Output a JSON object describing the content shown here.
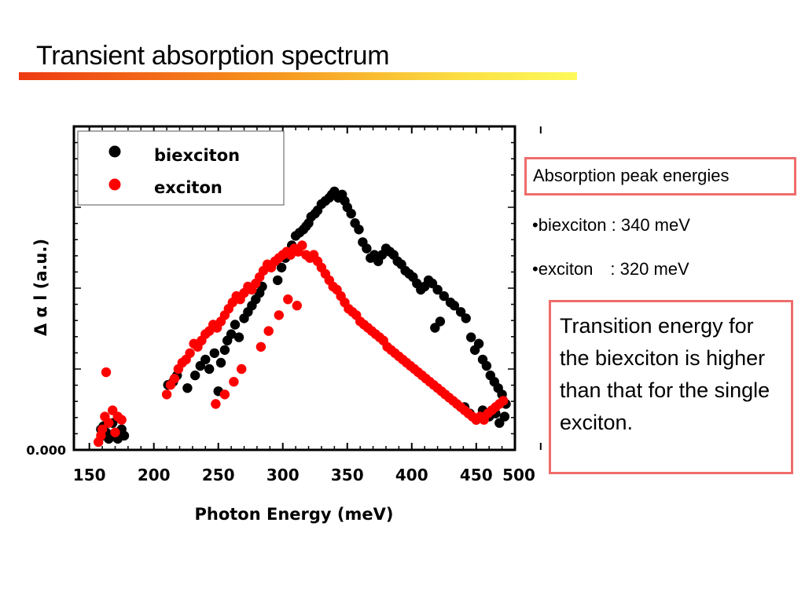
{
  "slide": {
    "title": "Transient absorption spectrum",
    "title_bar_colors": [
      "#ee3a12",
      "#f6941e",
      "#fbe043",
      "#fdfa5a"
    ]
  },
  "peaks_box": {
    "heading": "Absorption peak energies",
    "items": [
      "•biexciton : 340 meV",
      "•exciton　: 320 meV"
    ]
  },
  "note_box": {
    "text": "Transition energy for the biexciton  is higher than that for the single exciton."
  },
  "colors": {
    "box_border": "#ef6c6c",
    "biexciton": "#000000",
    "exciton": "#ff0000"
  },
  "chart_data": {
    "type": "scatter",
    "xlabel": "Photon Energy (meV)",
    "ylabel": "Δ α l (a.u.)",
    "xlim": [
      138,
      480
    ],
    "xticks": [
      150,
      200,
      250,
      300,
      350,
      400,
      450,
      500
    ],
    "ylim": [
      0,
      100
    ],
    "yticks_labeled": [
      {
        "value": 0,
        "label": "0.000"
      }
    ],
    "grid": false,
    "legend_position": "top-left",
    "series": [
      {
        "name": "biexciton",
        "color": "#000000",
        "points": [
          [
            159,
            5
          ],
          [
            160,
            3
          ],
          [
            161,
            6
          ],
          [
            163,
            4
          ],
          [
            165,
            2
          ],
          [
            168,
            7
          ],
          [
            170,
            4
          ],
          [
            172,
            2
          ],
          [
            175,
            5
          ],
          [
            177,
            3
          ],
          [
            211,
            19
          ],
          [
            215,
            20
          ],
          [
            218,
            22
          ],
          [
            226,
            18
          ],
          [
            232,
            22
          ],
          [
            236,
            25
          ],
          [
            240,
            27
          ],
          [
            243,
            24
          ],
          [
            247,
            29
          ],
          [
            250,
            17
          ],
          [
            252,
            26
          ],
          [
            255,
            30
          ],
          [
            257,
            33
          ],
          [
            260,
            35
          ],
          [
            263,
            38
          ],
          [
            266,
            34
          ],
          [
            270,
            40
          ],
          [
            273,
            42
          ],
          [
            276,
            44
          ],
          [
            279,
            46
          ],
          [
            282,
            48
          ],
          [
            284,
            50
          ],
          [
            296,
            52
          ],
          [
            299,
            56
          ],
          [
            302,
            59
          ],
          [
            305,
            61
          ],
          [
            307,
            63
          ],
          [
            310,
            66
          ],
          [
            313,
            67
          ],
          [
            316,
            68
          ],
          [
            318,
            69
          ],
          [
            320,
            70
          ],
          [
            322,
            72
          ],
          [
            325,
            73
          ],
          [
            327,
            74
          ],
          [
            330,
            76
          ],
          [
            333,
            77
          ],
          [
            336,
            78
          ],
          [
            338,
            79
          ],
          [
            340,
            80
          ],
          [
            343,
            78
          ],
          [
            346,
            79
          ],
          [
            348,
            77
          ],
          [
            350,
            75
          ],
          [
            353,
            73
          ],
          [
            356,
            70
          ],
          [
            359,
            68
          ],
          [
            362,
            64
          ],
          [
            365,
            62
          ],
          [
            368,
            59
          ],
          [
            371,
            60
          ],
          [
            374,
            58
          ],
          [
            377,
            60
          ],
          [
            380,
            62
          ],
          [
            383,
            61
          ],
          [
            386,
            60
          ],
          [
            389,
            58
          ],
          [
            392,
            57
          ],
          [
            395,
            55
          ],
          [
            398,
            54
          ],
          [
            401,
            53
          ],
          [
            404,
            51
          ],
          [
            407,
            49
          ],
          [
            410,
            50
          ],
          [
            413,
            52
          ],
          [
            416,
            51
          ],
          [
            420,
            49
          ],
          [
            425,
            47
          ],
          [
            430,
            45
          ],
          [
            433,
            44
          ],
          [
            438,
            42
          ],
          [
            442,
            40
          ],
          [
            446,
            34
          ],
          [
            449,
            30
          ],
          [
            452,
            32
          ],
          [
            455,
            27
          ],
          [
            458,
            25
          ],
          [
            461,
            22
          ],
          [
            464,
            20
          ],
          [
            467,
            18
          ],
          [
            470,
            16
          ],
          [
            473,
            13
          ],
          [
            441,
            12
          ],
          [
            445,
            10
          ],
          [
            450,
            8
          ],
          [
            455,
            11
          ],
          [
            460,
            9
          ],
          [
            465,
            10
          ],
          [
            468,
            7
          ],
          [
            472,
            9
          ],
          [
            418,
            37
          ],
          [
            422,
            39
          ]
        ]
      },
      {
        "name": "exciton",
        "color": "#ff0000",
        "points": [
          [
            157,
            1
          ],
          [
            159,
            3
          ],
          [
            160,
            5
          ],
          [
            162,
            9
          ],
          [
            163,
            23
          ],
          [
            165,
            7
          ],
          [
            168,
            11
          ],
          [
            170,
            4
          ],
          [
            172,
            9
          ],
          [
            175,
            8
          ],
          [
            210,
            16
          ],
          [
            213,
            19
          ],
          [
            216,
            21
          ],
          [
            219,
            24
          ],
          [
            222,
            26
          ],
          [
            225,
            27
          ],
          [
            228,
            29
          ],
          [
            231,
            32
          ],
          [
            234,
            31
          ],
          [
            237,
            33
          ],
          [
            240,
            35
          ],
          [
            243,
            36
          ],
          [
            246,
            38
          ],
          [
            249,
            37
          ],
          [
            252,
            39
          ],
          [
            255,
            41
          ],
          [
            258,
            43
          ],
          [
            261,
            45
          ],
          [
            264,
            47
          ],
          [
            267,
            46
          ],
          [
            270,
            48
          ],
          [
            273,
            50
          ],
          [
            276,
            49
          ],
          [
            279,
            51
          ],
          [
            282,
            53
          ],
          [
            285,
            55
          ],
          [
            288,
            57
          ],
          [
            291,
            56
          ],
          [
            294,
            58
          ],
          [
            297,
            59
          ],
          [
            300,
            60
          ],
          [
            303,
            61
          ],
          [
            306,
            60
          ],
          [
            309,
            62
          ],
          [
            312,
            61
          ],
          [
            315,
            63
          ],
          [
            318,
            60
          ],
          [
            321,
            59
          ],
          [
            324,
            60
          ],
          [
            327,
            58
          ],
          [
            330,
            56
          ],
          [
            333,
            54
          ],
          [
            336,
            52
          ],
          [
            339,
            50
          ],
          [
            342,
            49
          ],
          [
            345,
            47
          ],
          [
            348,
            45
          ],
          [
            351,
            43
          ],
          [
            354,
            42
          ],
          [
            357,
            41
          ],
          [
            360,
            39
          ],
          [
            363,
            38
          ],
          [
            366,
            37
          ],
          [
            369,
            36
          ],
          [
            372,
            35
          ],
          [
            375,
            34
          ],
          [
            378,
            33
          ],
          [
            381,
            31
          ],
          [
            384,
            30
          ],
          [
            387,
            29
          ],
          [
            390,
            28
          ],
          [
            393,
            27
          ],
          [
            396,
            26
          ],
          [
            399,
            25
          ],
          [
            402,
            24
          ],
          [
            405,
            23
          ],
          [
            408,
            22
          ],
          [
            411,
            21
          ],
          [
            414,
            20
          ],
          [
            417,
            19
          ],
          [
            420,
            18
          ],
          [
            423,
            17
          ],
          [
            426,
            16
          ],
          [
            429,
            15
          ],
          [
            432,
            14
          ],
          [
            435,
            13
          ],
          [
            438,
            12
          ],
          [
            441,
            11
          ],
          [
            444,
            10
          ],
          [
            447,
            9
          ],
          [
            450,
            8
          ],
          [
            453,
            9
          ],
          [
            456,
            8
          ],
          [
            459,
            10
          ],
          [
            462,
            11
          ],
          [
            465,
            12
          ],
          [
            468,
            13
          ],
          [
            471,
            14
          ],
          [
            248,
            13
          ],
          [
            255,
            16
          ],
          [
            262,
            20
          ],
          [
            268,
            24
          ],
          [
            304,
            46
          ],
          [
            311,
            44
          ],
          [
            289,
            36
          ],
          [
            283,
            31
          ],
          [
            297,
            41
          ]
        ]
      }
    ]
  }
}
